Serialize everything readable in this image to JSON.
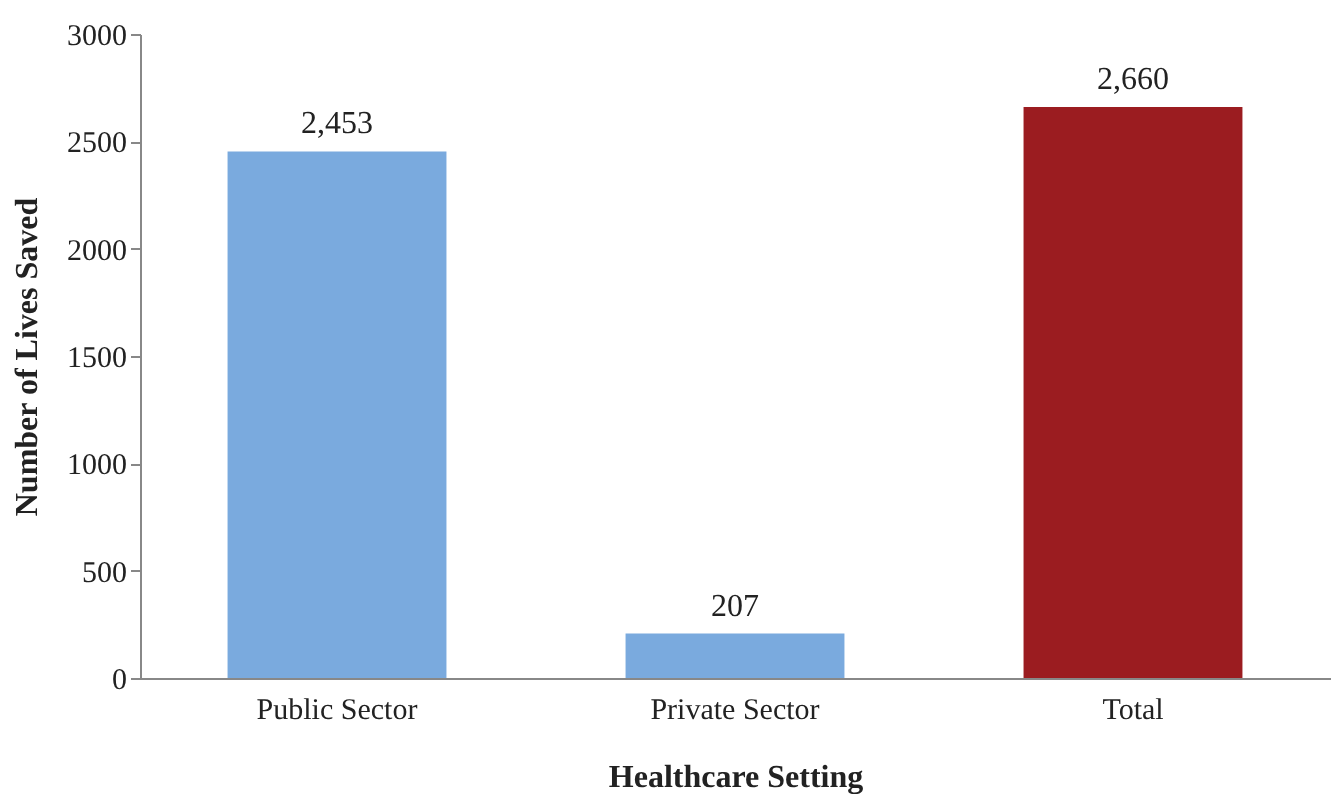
{
  "chart_data": {
    "type": "bar",
    "xlabel": "Healthcare Setting",
    "ylabel": "Number of Lives Saved",
    "categories": [
      "Public Sector",
      "Private Sector",
      "Total"
    ],
    "values": [
      2453,
      207,
      2660
    ],
    "colors": [
      "#7aaade",
      "#7aaade",
      "#9b1c20"
    ],
    "value_labels": [
      "2,453",
      "207",
      "2,660"
    ],
    "ylim": [
      0,
      3000
    ],
    "yticks": [
      0,
      500,
      1000,
      1500,
      2000,
      2500,
      3000
    ],
    "grid": false
  }
}
